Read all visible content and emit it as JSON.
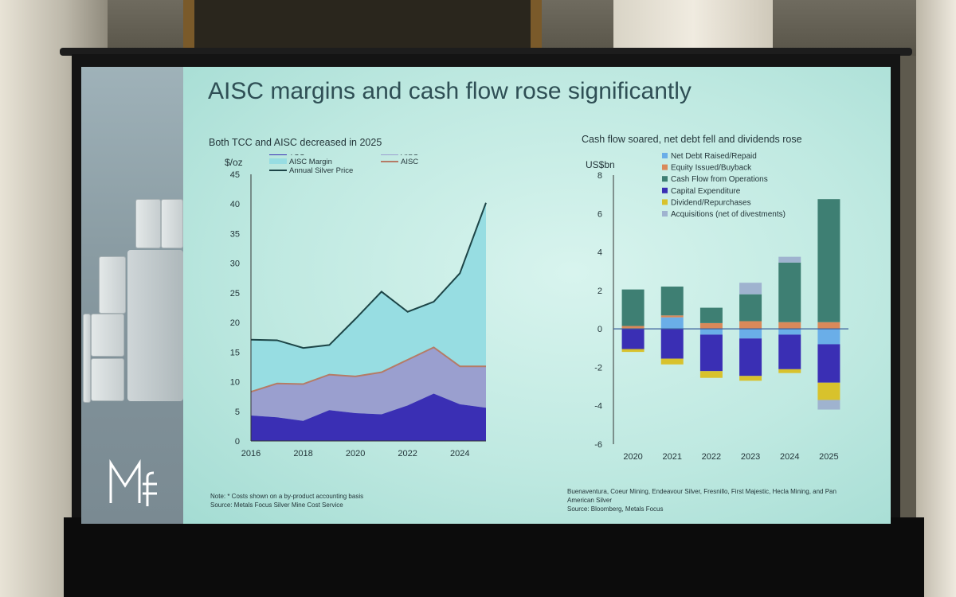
{
  "slide": {
    "title": "AISC margins and cash flow rose significantly"
  },
  "left_note": {
    "line1": "Note: * Costs shown on a by-product accounting basis",
    "line2": "Source: Metals Focus Silver Mine Cost Service"
  },
  "right_note": {
    "line1": "Buenaventura, Coeur Mining, Endeavour Silver, Fresnillo, First Majestic, Hecla Mining, and Pan",
    "line2": "American Silver",
    "line3": "Source: Bloomberg, Metals Focus"
  },
  "logo_text": "MF",
  "chart_data": [
    {
      "type": "area",
      "title": "Both TCC and AISC decreased in 2025",
      "ylabel": "$/oz",
      "ylim": [
        0,
        45
      ],
      "yticks": [
        0,
        5,
        10,
        15,
        20,
        25,
        30,
        35,
        40,
        45
      ],
      "xlim": [
        2016,
        2025
      ],
      "xticks": [
        2016,
        2018,
        2020,
        2022,
        2024
      ],
      "x": [
        2016,
        2017,
        2018,
        2019,
        2020,
        2021,
        2022,
        2023,
        2024,
        2025
      ],
      "legend": [
        "TCC",
        "AISC",
        "AISC Margin",
        "AISC",
        "Annual Silver Price"
      ],
      "series": [
        {
          "name": "TCC",
          "values": [
            4.3,
            4.0,
            3.4,
            5.2,
            4.7,
            4.5,
            6.0,
            8.0,
            6.2,
            5.6
          ]
        },
        {
          "name": "AISC",
          "values": [
            8.3,
            9.7,
            9.6,
            11.2,
            10.9,
            11.6,
            13.7,
            15.8,
            12.6,
            12.6
          ]
        },
        {
          "name": "Annual Silver Price",
          "values": [
            17.1,
            17.0,
            15.7,
            16.2,
            20.6,
            25.2,
            21.8,
            23.5,
            28.3,
            40.2
          ]
        }
      ],
      "colors": {
        "tcc": "#3a2fb4",
        "aisc_fill": "#9a9fcf",
        "margin": "#97dde2",
        "aisc_line": "#b57b66",
        "price": "#1d4547"
      }
    },
    {
      "type": "bar",
      "stacked": true,
      "title": "Cash flow soared, net debt fell and dividends rose",
      "ylabel": "US$bn",
      "ylim": [
        -6,
        8
      ],
      "yticks": [
        -6,
        -4,
        -2,
        0,
        2,
        4,
        6,
        8
      ],
      "categories": [
        "2020",
        "2021",
        "2022",
        "2023",
        "2024",
        "2025"
      ],
      "series": [
        {
          "name": "Net Debt Raised/Repaid",
          "color": "#6aaee8",
          "values": [
            0.0,
            0.6,
            -0.3,
            -0.5,
            -0.3,
            -0.8
          ]
        },
        {
          "name": "Equity Issued/Buyback",
          "color": "#d9895a",
          "values": [
            0.15,
            0.1,
            0.3,
            0.4,
            0.35,
            0.35
          ]
        },
        {
          "name": "Cash Flow from Operations",
          "color": "#3e7f73",
          "values": [
            1.9,
            1.5,
            0.8,
            1.4,
            3.1,
            6.4
          ]
        },
        {
          "name": "Capital Expenditure",
          "color": "#3a2fb4",
          "values": [
            -1.05,
            -1.55,
            -1.9,
            -1.95,
            -1.8,
            -2.0
          ]
        },
        {
          "name": "Dividend/Repurchases",
          "color": "#d8c22c",
          "values": [
            -0.15,
            -0.3,
            -0.35,
            -0.25,
            -0.2,
            -0.9
          ]
        },
        {
          "name": "Acquisitions (net of divestments)",
          "color": "#9fb3cf",
          "values": [
            0.0,
            0.0,
            0.0,
            0.6,
            0.3,
            -0.5
          ]
        }
      ]
    }
  ]
}
